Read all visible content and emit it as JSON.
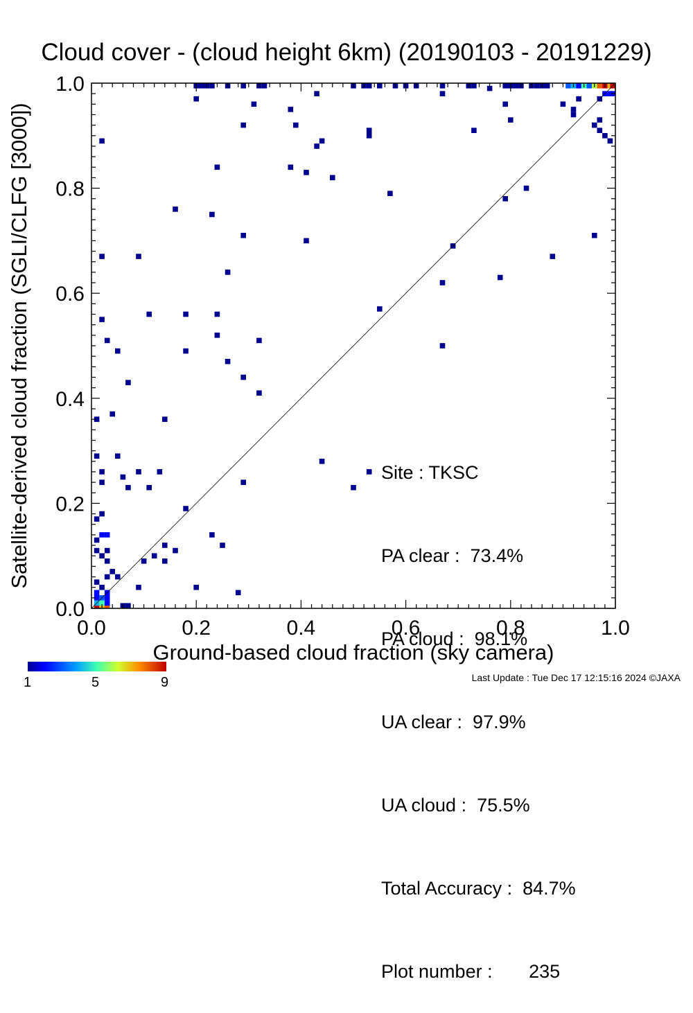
{
  "chart_data": {
    "type": "heatmap",
    "title": "Cloud cover - (cloud height 6km)  (20190103 - 20191229)",
    "xlabel": "Ground-based cloud fraction (sky camera)",
    "ylabel": "Satellite-derived cloud fraction (SGLI/CLFG [3000])",
    "xlim": [
      0.0,
      1.0
    ],
    "ylim": [
      0.0,
      1.0
    ],
    "xticks": [
      "0.0",
      "0.2",
      "0.4",
      "0.6",
      "0.8",
      "1.0"
    ],
    "yticks": [
      "0.0",
      "0.2",
      "0.4",
      "0.6",
      "0.8",
      "1.0"
    ],
    "grid": false,
    "reference_line": "y = x",
    "colorbar": {
      "min": 1,
      "max": 9,
      "ticks": [
        "1",
        "5",
        "9"
      ]
    },
    "points": [
      {
        "x": 0.01,
        "y": 0.0,
        "count": 9
      },
      {
        "x": 0.02,
        "y": 0.0,
        "count": 7
      },
      {
        "x": 0.01,
        "y": 0.01,
        "count": 4
      },
      {
        "x": 0.02,
        "y": 0.01,
        "count": 5
      },
      {
        "x": 0.03,
        "y": 0.0,
        "count": 8
      },
      {
        "x": 0.03,
        "y": 0.01,
        "count": 2
      },
      {
        "x": 0.01,
        "y": 0.02,
        "count": 2
      },
      {
        "x": 0.02,
        "y": 0.02,
        "count": 3
      },
      {
        "x": 0.03,
        "y": 0.02,
        "count": 2
      },
      {
        "x": 0.01,
        "y": 0.03,
        "count": 2
      },
      {
        "x": 0.03,
        "y": 0.03,
        "count": 2
      },
      {
        "x": 0.02,
        "y": 0.04,
        "count": 1
      },
      {
        "x": 0.01,
        "y": 0.05,
        "count": 1
      },
      {
        "x": 0.06,
        "y": 0.0,
        "count": 1
      },
      {
        "x": 0.07,
        "y": 0.0,
        "count": 1
      },
      {
        "x": 0.03,
        "y": 0.06,
        "count": 1
      },
      {
        "x": 0.04,
        "y": 0.07,
        "count": 1
      },
      {
        "x": 0.05,
        "y": 0.06,
        "count": 1
      },
      {
        "x": 0.02,
        "y": 0.1,
        "count": 1
      },
      {
        "x": 0.03,
        "y": 0.09,
        "count": 1
      },
      {
        "x": 0.01,
        "y": 0.11,
        "count": 1
      },
      {
        "x": 0.03,
        "y": 0.11,
        "count": 1
      },
      {
        "x": 0.01,
        "y": 0.13,
        "count": 1
      },
      {
        "x": 0.02,
        "y": 0.14,
        "count": 2
      },
      {
        "x": 0.03,
        "y": 0.14,
        "count": 2
      },
      {
        "x": 0.01,
        "y": 0.17,
        "count": 1
      },
      {
        "x": 0.02,
        "y": 0.18,
        "count": 1
      },
      {
        "x": 0.02,
        "y": 0.24,
        "count": 1
      },
      {
        "x": 0.02,
        "y": 0.26,
        "count": 1
      },
      {
        "x": 0.01,
        "y": 0.29,
        "count": 1
      },
      {
        "x": 0.05,
        "y": 0.29,
        "count": 1
      },
      {
        "x": 0.06,
        "y": 0.25,
        "count": 1
      },
      {
        "x": 0.07,
        "y": 0.23,
        "count": 1
      },
      {
        "x": 0.09,
        "y": 0.26,
        "count": 1
      },
      {
        "x": 0.11,
        "y": 0.23,
        "count": 1
      },
      {
        "x": 0.13,
        "y": 0.26,
        "count": 1
      },
      {
        "x": 0.09,
        "y": 0.04,
        "count": 1
      },
      {
        "x": 0.1,
        "y": 0.09,
        "count": 1
      },
      {
        "x": 0.12,
        "y": 0.1,
        "count": 1
      },
      {
        "x": 0.14,
        "y": 0.09,
        "count": 1
      },
      {
        "x": 0.14,
        "y": 0.12,
        "count": 1
      },
      {
        "x": 0.16,
        "y": 0.11,
        "count": 1
      },
      {
        "x": 0.18,
        "y": 0.19,
        "count": 1
      },
      {
        "x": 0.2,
        "y": 0.04,
        "count": 1
      },
      {
        "x": 0.23,
        "y": 0.14,
        "count": 1
      },
      {
        "x": 0.25,
        "y": 0.12,
        "count": 1
      },
      {
        "x": 0.28,
        "y": 0.03,
        "count": 1
      },
      {
        "x": 0.29,
        "y": 0.24,
        "count": 1
      },
      {
        "x": 0.01,
        "y": 0.36,
        "count": 1
      },
      {
        "x": 0.04,
        "y": 0.37,
        "count": 1
      },
      {
        "x": 0.14,
        "y": 0.36,
        "count": 1
      },
      {
        "x": 0.07,
        "y": 0.43,
        "count": 1
      },
      {
        "x": 0.03,
        "y": 0.51,
        "count": 1
      },
      {
        "x": 0.05,
        "y": 0.49,
        "count": 1
      },
      {
        "x": 0.02,
        "y": 0.55,
        "count": 1
      },
      {
        "x": 0.11,
        "y": 0.56,
        "count": 1
      },
      {
        "x": 0.18,
        "y": 0.56,
        "count": 1
      },
      {
        "x": 0.18,
        "y": 0.49,
        "count": 1
      },
      {
        "x": 0.24,
        "y": 0.56,
        "count": 1
      },
      {
        "x": 0.24,
        "y": 0.52,
        "count": 1
      },
      {
        "x": 0.26,
        "y": 0.47,
        "count": 1
      },
      {
        "x": 0.29,
        "y": 0.44,
        "count": 1
      },
      {
        "x": 0.32,
        "y": 0.51,
        "count": 1
      },
      {
        "x": 0.32,
        "y": 0.41,
        "count": 1
      },
      {
        "x": 0.02,
        "y": 0.67,
        "count": 1
      },
      {
        "x": 0.09,
        "y": 0.67,
        "count": 1
      },
      {
        "x": 0.26,
        "y": 0.64,
        "count": 1
      },
      {
        "x": 0.29,
        "y": 0.71,
        "count": 1
      },
      {
        "x": 0.16,
        "y": 0.76,
        "count": 1
      },
      {
        "x": 0.23,
        "y": 0.75,
        "count": 1
      },
      {
        "x": 0.24,
        "y": 0.84,
        "count": 1
      },
      {
        "x": 0.38,
        "y": 0.84,
        "count": 1
      },
      {
        "x": 0.41,
        "y": 0.83,
        "count": 1
      },
      {
        "x": 0.41,
        "y": 0.7,
        "count": 1
      },
      {
        "x": 0.46,
        "y": 0.82,
        "count": 1
      },
      {
        "x": 0.02,
        "y": 0.89,
        "count": 1
      },
      {
        "x": 0.29,
        "y": 0.92,
        "count": 1
      },
      {
        "x": 0.31,
        "y": 0.96,
        "count": 1
      },
      {
        "x": 0.38,
        "y": 0.95,
        "count": 1
      },
      {
        "x": 0.39,
        "y": 0.92,
        "count": 1
      },
      {
        "x": 0.43,
        "y": 0.88,
        "count": 1
      },
      {
        "x": 0.44,
        "y": 0.89,
        "count": 1
      },
      {
        "x": 0.43,
        "y": 0.98,
        "count": 1
      },
      {
        "x": 0.2,
        "y": 0.97,
        "count": 1
      },
      {
        "x": 0.53,
        "y": 0.9,
        "count": 1
      },
      {
        "x": 0.53,
        "y": 0.91,
        "count": 1
      },
      {
        "x": 0.57,
        "y": 0.79,
        "count": 1
      },
      {
        "x": 0.44,
        "y": 0.28,
        "count": 1
      },
      {
        "x": 0.5,
        "y": 0.23,
        "count": 1
      },
      {
        "x": 0.53,
        "y": 0.26,
        "count": 1
      },
      {
        "x": 0.55,
        "y": 0.57,
        "count": 1
      },
      {
        "x": 0.67,
        "y": 0.62,
        "count": 1
      },
      {
        "x": 0.67,
        "y": 0.5,
        "count": 1
      },
      {
        "x": 0.69,
        "y": 0.69,
        "count": 1
      },
      {
        "x": 0.78,
        "y": 0.63,
        "count": 1
      },
      {
        "x": 0.88,
        "y": 0.67,
        "count": 1
      },
      {
        "x": 0.96,
        "y": 0.71,
        "count": 1
      },
      {
        "x": 0.79,
        "y": 0.78,
        "count": 1
      },
      {
        "x": 0.83,
        "y": 0.8,
        "count": 1
      },
      {
        "x": 0.73,
        "y": 0.91,
        "count": 1
      },
      {
        "x": 0.8,
        "y": 0.93,
        "count": 1
      },
      {
        "x": 0.79,
        "y": 0.96,
        "count": 1
      },
      {
        "x": 0.67,
        "y": 0.98,
        "count": 1
      },
      {
        "x": 0.76,
        "y": 0.99,
        "count": 1
      },
      {
        "x": 0.9,
        "y": 0.96,
        "count": 1
      },
      {
        "x": 0.92,
        "y": 0.94,
        "count": 1
      },
      {
        "x": 0.92,
        "y": 0.95,
        "count": 1
      },
      {
        "x": 0.96,
        "y": 0.92,
        "count": 1
      },
      {
        "x": 0.97,
        "y": 0.93,
        "count": 1
      },
      {
        "x": 0.97,
        "y": 0.91,
        "count": 1
      },
      {
        "x": 0.98,
        "y": 0.9,
        "count": 1
      },
      {
        "x": 0.99,
        "y": 0.89,
        "count": 1
      },
      {
        "x": 0.93,
        "y": 0.97,
        "count": 1
      },
      {
        "x": 0.97,
        "y": 0.97,
        "count": 1
      },
      {
        "x": 0.98,
        "y": 0.98,
        "count": 2
      },
      {
        "x": 0.99,
        "y": 0.98,
        "count": 2
      },
      {
        "x": 1.0,
        "y": 0.98,
        "count": 2
      },
      {
        "x": 0.2,
        "y": 1.0,
        "count": 1
      },
      {
        "x": 0.21,
        "y": 1.0,
        "count": 1
      },
      {
        "x": 0.22,
        "y": 1.0,
        "count": 1
      },
      {
        "x": 0.23,
        "y": 1.0,
        "count": 1
      },
      {
        "x": 0.26,
        "y": 1.0,
        "count": 1
      },
      {
        "x": 0.29,
        "y": 1.0,
        "count": 1
      },
      {
        "x": 0.32,
        "y": 1.0,
        "count": 1
      },
      {
        "x": 0.33,
        "y": 1.0,
        "count": 1
      },
      {
        "x": 0.5,
        "y": 1.0,
        "count": 1
      },
      {
        "x": 0.52,
        "y": 1.0,
        "count": 1
      },
      {
        "x": 0.53,
        "y": 1.0,
        "count": 1
      },
      {
        "x": 0.55,
        "y": 1.0,
        "count": 1
      },
      {
        "x": 0.58,
        "y": 1.0,
        "count": 1
      },
      {
        "x": 0.6,
        "y": 1.0,
        "count": 1
      },
      {
        "x": 0.62,
        "y": 1.0,
        "count": 1
      },
      {
        "x": 0.67,
        "y": 1.0,
        "count": 1
      },
      {
        "x": 0.72,
        "y": 1.0,
        "count": 1
      },
      {
        "x": 0.73,
        "y": 1.0,
        "count": 1
      },
      {
        "x": 0.79,
        "y": 1.0,
        "count": 1
      },
      {
        "x": 0.8,
        "y": 1.0,
        "count": 1
      },
      {
        "x": 0.81,
        "y": 1.0,
        "count": 1
      },
      {
        "x": 0.82,
        "y": 1.0,
        "count": 1
      },
      {
        "x": 0.84,
        "y": 1.0,
        "count": 1
      },
      {
        "x": 0.85,
        "y": 1.0,
        "count": 1
      },
      {
        "x": 0.86,
        "y": 1.0,
        "count": 1
      },
      {
        "x": 0.87,
        "y": 1.0,
        "count": 1
      },
      {
        "x": 0.91,
        "y": 1.0,
        "count": 3
      },
      {
        "x": 0.92,
        "y": 1.0,
        "count": 4
      },
      {
        "x": 0.93,
        "y": 1.0,
        "count": 2
      },
      {
        "x": 0.94,
        "y": 1.0,
        "count": 5
      },
      {
        "x": 0.95,
        "y": 1.0,
        "count": 3
      },
      {
        "x": 0.96,
        "y": 1.0,
        "count": 6
      },
      {
        "x": 0.97,
        "y": 1.0,
        "count": 8
      },
      {
        "x": 0.98,
        "y": 1.0,
        "count": 9
      },
      {
        "x": 0.99,
        "y": 1.0,
        "count": 7
      },
      {
        "x": 1.0,
        "y": 1.0,
        "count": 9
      }
    ]
  },
  "stats": {
    "site": "Site : TKSC",
    "pa_clear": "PA clear :  73.4%",
    "pa_cloud": "PA cloud :  98.1%",
    "ua_clear": "UA clear :  97.9%",
    "ua_cloud": "UA cloud :  75.5%",
    "total_accuracy": "Total Accuracy :  84.7%",
    "plot_number": "Plot number :       235"
  },
  "footer": {
    "last_update": "Last Update : Tue Dec 17 12:15:16 2024  ©JAXA"
  }
}
